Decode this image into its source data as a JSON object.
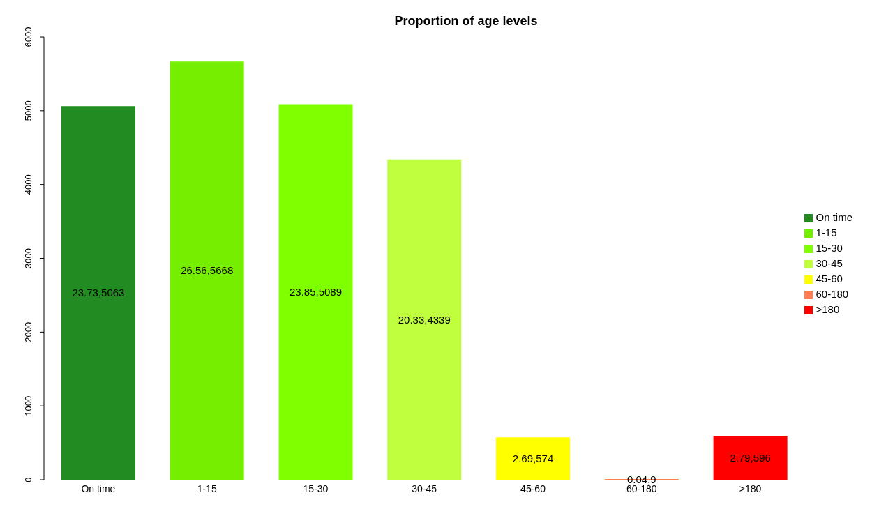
{
  "chart_data": {
    "type": "bar",
    "title": "Proportion of age levels",
    "categories": [
      "On time",
      "1-15",
      "15-30",
      "30-45",
      "45-60",
      "60-180",
      ">180"
    ],
    "stacked": true,
    "series": [
      {
        "name": "On time",
        "color": "#228b22",
        "values": [
          5063,
          null,
          null,
          null,
          null,
          null,
          null
        ],
        "value_labels": [
          "23.73,5063",
          null,
          null,
          null,
          null,
          null,
          null
        ]
      },
      {
        "name": "1-15",
        "color": "#76ee00",
        "values": [
          null,
          5668,
          null,
          null,
          null,
          null,
          null
        ],
        "value_labels": [
          null,
          "26.56,5668",
          null,
          null,
          null,
          null,
          null
        ]
      },
      {
        "name": "15-30",
        "color": "#7fff00",
        "values": [
          null,
          null,
          5089,
          null,
          null,
          null,
          null
        ],
        "value_labels": [
          null,
          null,
          "23.85,5089",
          null,
          null,
          null,
          null
        ]
      },
      {
        "name": "30-45",
        "color": "#c0ff3e",
        "values": [
          null,
          null,
          null,
          4339,
          null,
          null,
          null
        ],
        "value_labels": [
          null,
          null,
          null,
          "20.33,4339",
          null,
          null,
          null
        ]
      },
      {
        "name": "45-60",
        "color": "#ffff00",
        "values": [
          null,
          null,
          null,
          null,
          574,
          null,
          null
        ],
        "value_labels": [
          null,
          null,
          null,
          null,
          "2.69,574",
          null,
          null
        ]
      },
      {
        "name": "60-180",
        "color": "#ff7f50",
        "values": [
          null,
          null,
          null,
          null,
          null,
          9,
          null
        ],
        "value_labels": [
          null,
          null,
          null,
          null,
          null,
          "0.04,9",
          null
        ]
      },
      {
        "name": ">180",
        "color": "#ff0000",
        "values": [
          null,
          null,
          null,
          null,
          null,
          null,
          596
        ],
        "value_labels": [
          null,
          null,
          null,
          null,
          null,
          null,
          "2.79,596"
        ]
      }
    ],
    "ylim": [
      0,
      6000
    ],
    "yticks": [
      0,
      1000,
      2000,
      3000,
      4000,
      5000,
      6000
    ],
    "legend": "right"
  }
}
